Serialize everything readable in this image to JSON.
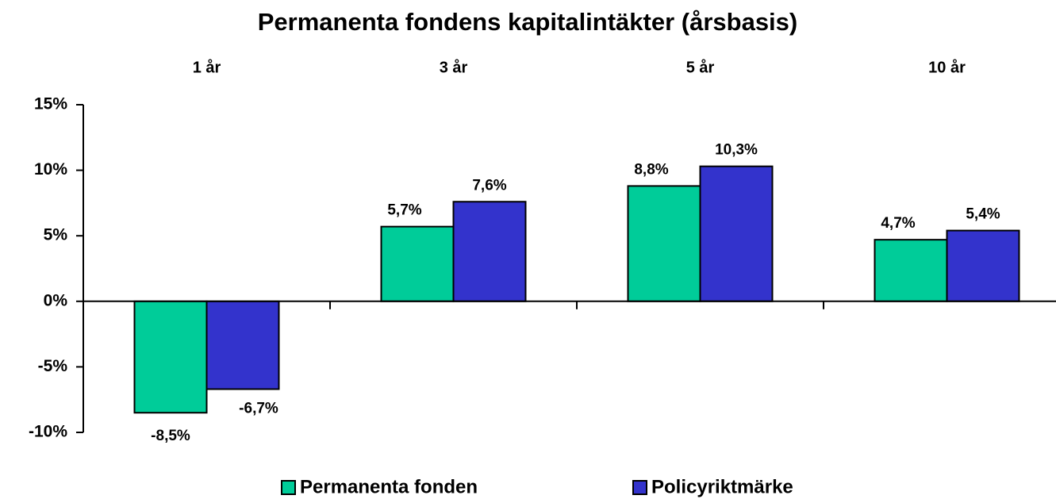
{
  "chart_data": {
    "type": "bar",
    "title": "Permanenta fondens kapitalintäkter (årsbasis)",
    "categories": [
      "1 år",
      "3 år",
      "5 år",
      "10 år"
    ],
    "series": [
      {
        "name": "Permanenta fonden",
        "color": "#00cc99",
        "values": [
          -8.5,
          5.7,
          8.8,
          4.7
        ],
        "value_labels": [
          "-8,5%",
          "5,7%",
          "8,8%",
          "4,7%"
        ]
      },
      {
        "name": "Policyriktmärke",
        "color": "#3333cc",
        "values": [
          -6.7,
          7.6,
          10.3,
          5.4
        ],
        "value_labels": [
          "-6,7%",
          "7,6%",
          "10,3%",
          "5,4%"
        ]
      }
    ],
    "ylim": [
      -10,
      15
    ],
    "yticks": [
      {
        "value": -10,
        "label": "-10%"
      },
      {
        "value": -5,
        "label": "-5%"
      },
      {
        "value": 0,
        "label": "0%"
      },
      {
        "value": 5,
        "label": "5%"
      },
      {
        "value": 10,
        "label": "10%"
      },
      {
        "value": 15,
        "label": "15%"
      }
    ],
    "legend": "bottom"
  }
}
